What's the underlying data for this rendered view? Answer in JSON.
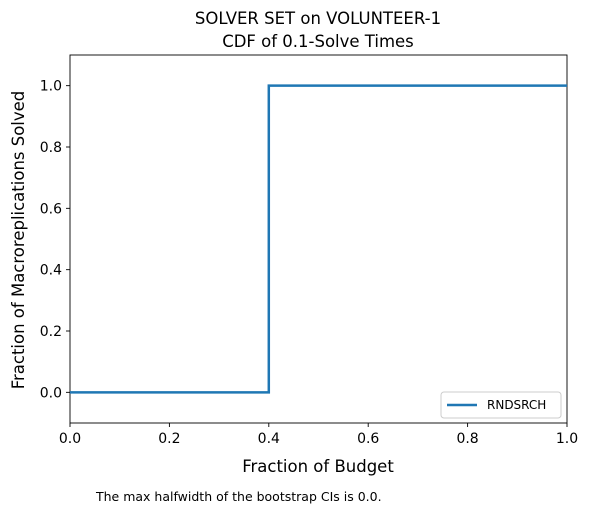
{
  "chart_data": {
    "type": "line",
    "title": "SOLVER SET on VOLUNTEER-1",
    "subtitle": "CDF of 0.1-Solve Times",
    "xlabel": "Fraction of Budget",
    "ylabel": "Fraction of Macroreplications Solved",
    "xlim": [
      0.0,
      1.0
    ],
    "ylim": [
      -0.1,
      1.1
    ],
    "xticks": [
      "0.0",
      "0.2",
      "0.4",
      "0.6",
      "0.8",
      "1.0"
    ],
    "yticks": [
      "0.0",
      "0.2",
      "0.4",
      "0.6",
      "0.8",
      "1.0"
    ],
    "grid": false,
    "legend_position": "bottom-right",
    "series": [
      {
        "name": "RNDSRCH",
        "color": "#1f77b4",
        "step": true,
        "x": [
          0.0,
          0.4,
          0.4,
          1.0
        ],
        "y": [
          0.0,
          0.0,
          1.0,
          1.0
        ]
      }
    ]
  },
  "footnote": "The max halfwidth of the bootstrap CIs is 0.0."
}
